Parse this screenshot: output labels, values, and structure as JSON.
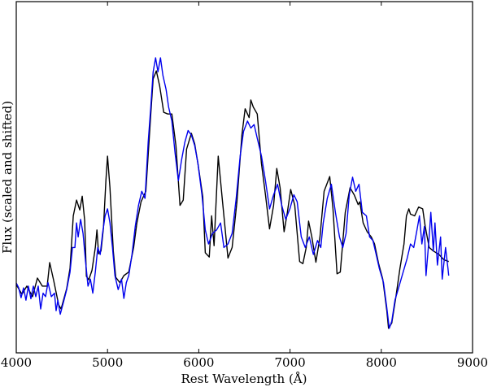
{
  "chart_data": {
    "type": "line",
    "title": "",
    "xlabel": "Rest Wavelength (Å)",
    "ylabel": "Flux (scaled and shifted)",
    "xlim": [
      4000,
      9000
    ],
    "ylim": [
      0,
      1
    ],
    "xticks": [
      4000,
      5000,
      6000,
      7000,
      8000,
      9000
    ],
    "xtick_labels": [
      "4000",
      "5000",
      "6000",
      "7000",
      "8000",
      "9000"
    ],
    "yticks": [],
    "grid": false,
    "legend": null,
    "series": [
      {
        "name": "black spectrum",
        "color": "#000000",
        "points": [
          [
            4000,
            0.194
          ],
          [
            4062,
            0.167
          ],
          [
            4116,
            0.19
          ],
          [
            4178,
            0.16
          ],
          [
            4232,
            0.213
          ],
          [
            4285,
            0.19
          ],
          [
            4339,
            0.19
          ],
          [
            4366,
            0.257
          ],
          [
            4410,
            0.206
          ],
          [
            4464,
            0.137
          ],
          [
            4491,
            0.125
          ],
          [
            4553,
            0.183
          ],
          [
            4589,
            0.241
          ],
          [
            4607,
            0.315
          ],
          [
            4625,
            0.39
          ],
          [
            4660,
            0.435
          ],
          [
            4696,
            0.407
          ],
          [
            4723,
            0.446
          ],
          [
            4750,
            0.377
          ],
          [
            4768,
            0.218
          ],
          [
            4794,
            0.208
          ],
          [
            4830,
            0.235
          ],
          [
            4866,
            0.3
          ],
          [
            4884,
            0.35
          ],
          [
            4902,
            0.282
          ],
          [
            4929,
            0.29
          ],
          [
            4955,
            0.356
          ],
          [
            4982,
            0.49
          ],
          [
            5000,
            0.56
          ],
          [
            5027,
            0.47
          ],
          [
            5063,
            0.29
          ],
          [
            5090,
            0.215
          ],
          [
            5135,
            0.2
          ],
          [
            5179,
            0.22
          ],
          [
            5233,
            0.23
          ],
          [
            5286,
            0.3
          ],
          [
            5322,
            0.37
          ],
          [
            5367,
            0.43
          ],
          [
            5420,
            0.46
          ],
          [
            5474,
            0.68
          ],
          [
            5500,
            0.78
          ],
          [
            5535,
            0.803
          ],
          [
            5571,
            0.76
          ],
          [
            5616,
            0.685
          ],
          [
            5660,
            0.68
          ],
          [
            5705,
            0.68
          ],
          [
            5750,
            0.59
          ],
          [
            5794,
            0.42
          ],
          [
            5830,
            0.435
          ],
          [
            5866,
            0.58
          ],
          [
            5919,
            0.625
          ],
          [
            5955,
            0.595
          ],
          [
            5990,
            0.54
          ],
          [
            6044,
            0.445
          ],
          [
            6071,
            0.285
          ],
          [
            6115,
            0.273
          ],
          [
            6141,
            0.39
          ],
          [
            6168,
            0.305
          ],
          [
            6213,
            0.56
          ],
          [
            6257,
            0.44
          ],
          [
            6320,
            0.27
          ],
          [
            6365,
            0.3
          ],
          [
            6418,
            0.43
          ],
          [
            6472,
            0.62
          ],
          [
            6508,
            0.695
          ],
          [
            6552,
            0.67
          ],
          [
            6570,
            0.72
          ],
          [
            6597,
            0.7
          ],
          [
            6641,
            0.68
          ],
          [
            6686,
            0.54
          ],
          [
            6731,
            0.45
          ],
          [
            6775,
            0.353
          ],
          [
            6820,
            0.42
          ],
          [
            6855,
            0.525
          ],
          [
            6891,
            0.47
          ],
          [
            6935,
            0.345
          ],
          [
            6971,
            0.4
          ],
          [
            7007,
            0.465
          ],
          [
            7052,
            0.42
          ],
          [
            7105,
            0.26
          ],
          [
            7141,
            0.254
          ],
          [
            7177,
            0.3
          ],
          [
            7203,
            0.375
          ],
          [
            7239,
            0.33
          ],
          [
            7283,
            0.258
          ],
          [
            7328,
            0.33
          ],
          [
            7373,
            0.46
          ],
          [
            7435,
            0.502
          ],
          [
            7471,
            0.41
          ],
          [
            7515,
            0.225
          ],
          [
            7551,
            0.23
          ],
          [
            7605,
            0.4
          ],
          [
            7658,
            0.47
          ],
          [
            7703,
            0.45
          ],
          [
            7747,
            0.422
          ],
          [
            7765,
            0.43
          ],
          [
            7801,
            0.37
          ],
          [
            7845,
            0.345
          ],
          [
            7890,
            0.33
          ],
          [
            7926,
            0.31
          ],
          [
            7970,
            0.255
          ],
          [
            8016,
            0.21
          ],
          [
            8061,
            0.12
          ],
          [
            8079,
            0.07
          ],
          [
            8115,
            0.085
          ],
          [
            8160,
            0.16
          ],
          [
            8204,
            0.24
          ],
          [
            8249,
            0.31
          ],
          [
            8275,
            0.39
          ],
          [
            8302,
            0.41
          ],
          [
            8320,
            0.395
          ],
          [
            8365,
            0.39
          ],
          [
            8409,
            0.415
          ],
          [
            8454,
            0.41
          ],
          [
            8481,
            0.36
          ],
          [
            8525,
            0.3
          ],
          [
            8570,
            0.29
          ],
          [
            8632,
            0.28
          ],
          [
            8686,
            0.265
          ],
          [
            8739,
            0.26
          ]
        ]
      },
      {
        "name": "blue spectrum",
        "color": "#0000ee",
        "points": [
          [
            4000,
            0.199
          ],
          [
            4027,
            0.185
          ],
          [
            4053,
            0.157
          ],
          [
            4080,
            0.185
          ],
          [
            4106,
            0.15
          ],
          [
            4133,
            0.19
          ],
          [
            4160,
            0.154
          ],
          [
            4187,
            0.19
          ],
          [
            4214,
            0.16
          ],
          [
            4241,
            0.19
          ],
          [
            4267,
            0.125
          ],
          [
            4294,
            0.17
          ],
          [
            4321,
            0.16
          ],
          [
            4348,
            0.2
          ],
          [
            4384,
            0.16
          ],
          [
            4419,
            0.17
          ],
          [
            4437,
            0.12
          ],
          [
            4455,
            0.15
          ],
          [
            4482,
            0.11
          ],
          [
            4518,
            0.145
          ],
          [
            4553,
            0.18
          ],
          [
            4589,
            0.23
          ],
          [
            4616,
            0.3
          ],
          [
            4643,
            0.3
          ],
          [
            4660,
            0.37
          ],
          [
            4678,
            0.33
          ],
          [
            4705,
            0.38
          ],
          [
            4732,
            0.34
          ],
          [
            4759,
            0.26
          ],
          [
            4786,
            0.19
          ],
          [
            4812,
            0.21
          ],
          [
            4839,
            0.17
          ],
          [
            4866,
            0.23
          ],
          [
            4893,
            0.3
          ],
          [
            4920,
            0.28
          ],
          [
            4946,
            0.34
          ],
          [
            4973,
            0.39
          ],
          [
            5000,
            0.41
          ],
          [
            5027,
            0.37
          ],
          [
            5054,
            0.3
          ],
          [
            5081,
            0.22
          ],
          [
            5117,
            0.18
          ],
          [
            5153,
            0.21
          ],
          [
            5179,
            0.155
          ],
          [
            5206,
            0.2
          ],
          [
            5233,
            0.22
          ],
          [
            5268,
            0.28
          ],
          [
            5304,
            0.36
          ],
          [
            5340,
            0.42
          ],
          [
            5375,
            0.46
          ],
          [
            5411,
            0.44
          ],
          [
            5446,
            0.6
          ],
          [
            5474,
            0.7
          ],
          [
            5500,
            0.8
          ],
          [
            5527,
            0.84
          ],
          [
            5553,
            0.8
          ],
          [
            5580,
            0.84
          ],
          [
            5607,
            0.79
          ],
          [
            5642,
            0.75
          ],
          [
            5669,
            0.7
          ],
          [
            5705,
            0.66
          ],
          [
            5740,
            0.57
          ],
          [
            5776,
            0.49
          ],
          [
            5812,
            0.55
          ],
          [
            5848,
            0.6
          ],
          [
            5883,
            0.633
          ],
          [
            5919,
            0.62
          ],
          [
            5955,
            0.59
          ],
          [
            5990,
            0.54
          ],
          [
            6035,
            0.45
          ],
          [
            6071,
            0.35
          ],
          [
            6107,
            0.31
          ],
          [
            6150,
            0.34
          ],
          [
            6195,
            0.35
          ],
          [
            6239,
            0.37
          ],
          [
            6275,
            0.3
          ],
          [
            6320,
            0.31
          ],
          [
            6365,
            0.34
          ],
          [
            6410,
            0.44
          ],
          [
            6454,
            0.56
          ],
          [
            6490,
            0.63
          ],
          [
            6534,
            0.66
          ],
          [
            6570,
            0.64
          ],
          [
            6606,
            0.65
          ],
          [
            6642,
            0.61
          ],
          [
            6687,
            0.56
          ],
          [
            6731,
            0.49
          ],
          [
            6775,
            0.41
          ],
          [
            6820,
            0.45
          ],
          [
            6864,
            0.48
          ],
          [
            6909,
            0.42
          ],
          [
            6953,
            0.38
          ],
          [
            6998,
            0.41
          ],
          [
            7042,
            0.45
          ],
          [
            7078,
            0.43
          ],
          [
            7123,
            0.33
          ],
          [
            7167,
            0.3
          ],
          [
            7211,
            0.33
          ],
          [
            7256,
            0.28
          ],
          [
            7301,
            0.32
          ],
          [
            7337,
            0.3
          ],
          [
            7364,
            0.37
          ],
          [
            7408,
            0.44
          ],
          [
            7453,
            0.48
          ],
          [
            7497,
            0.4
          ],
          [
            7542,
            0.33
          ],
          [
            7578,
            0.3
          ],
          [
            7614,
            0.34
          ],
          [
            7649,
            0.45
          ],
          [
            7685,
            0.5
          ],
          [
            7720,
            0.46
          ],
          [
            7756,
            0.48
          ],
          [
            7792,
            0.4
          ],
          [
            7837,
            0.39
          ],
          [
            7872,
            0.33
          ],
          [
            7908,
            0.32
          ],
          [
            7944,
            0.28
          ],
          [
            7979,
            0.24
          ],
          [
            8024,
            0.2
          ],
          [
            8060,
            0.13
          ],
          [
            8087,
            0.07
          ],
          [
            8115,
            0.09
          ],
          [
            8150,
            0.15
          ],
          [
            8195,
            0.19
          ],
          [
            8240,
            0.23
          ],
          [
            8284,
            0.27
          ],
          [
            8320,
            0.31
          ],
          [
            8356,
            0.3
          ],
          [
            8391,
            0.35
          ],
          [
            8418,
            0.39
          ],
          [
            8445,
            0.31
          ],
          [
            8472,
            0.36
          ],
          [
            8490,
            0.22
          ],
          [
            8525,
            0.33
          ],
          [
            8543,
            0.4
          ],
          [
            8570,
            0.29
          ],
          [
            8588,
            0.37
          ],
          [
            8615,
            0.25
          ],
          [
            8650,
            0.33
          ],
          [
            8668,
            0.21
          ],
          [
            8704,
            0.3
          ],
          [
            8731,
            0.24
          ],
          [
            8739,
            0.22
          ]
        ]
      }
    ]
  },
  "axes": {
    "xlabel": "Rest Wavelength (Å)",
    "ylabel": "Flux (scaled and shifted)",
    "xtick_labels": [
      "4000",
      "5000",
      "6000",
      "7000",
      "8000",
      "9000"
    ]
  }
}
